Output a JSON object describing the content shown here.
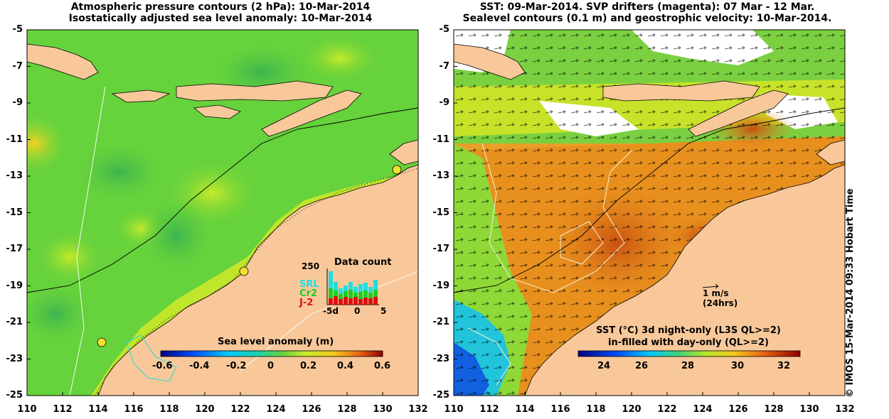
{
  "left_panel": {
    "title_line1": "Atmospheric pressure contours (2 hPa): 10-Mar-2014",
    "title_line2": "Isostatically adjusted sea level anomaly: 10-Mar-2014",
    "colorbar_title": "Sea level anomaly (m)",
    "colorbar_ticks": [
      "-0.6",
      "-0.4",
      "-0.2",
      "0",
      "0.2",
      "0.4",
      "0.6"
    ],
    "inset": {
      "title": "Data count",
      "ytick": "250",
      "legend": [
        {
          "label": "SRL",
          "color": "#22dddd"
        },
        {
          "label": "Cr2",
          "color": "#22cc22"
        },
        {
          "label": "J-2",
          "color": "#dd1111"
        }
      ],
      "xticks": [
        "-5d",
        "0",
        "5"
      ]
    }
  },
  "right_panel": {
    "title_line1": "SST: 09-Mar-2014. SVP drifters (magenta): 07 Mar - 12 Mar.",
    "title_line2": "Sealevel contours (0.1 m) and geostrophic velocity: 10-Mar-2014.",
    "scale_label": "1 m/s",
    "scale_sublabel": "(24hrs)",
    "colorbar_title_line1": "SST (°C)  3d night-only (L3S QL>=2)",
    "colorbar_title_line2": "in-filled with day-only (QL>=2)",
    "colorbar_ticks": [
      "24",
      "26",
      "28",
      "30",
      "32"
    ]
  },
  "axes": {
    "y_ticks": [
      "-5",
      "-7",
      "-9",
      "-11",
      "-13",
      "-15",
      "-17",
      "-19",
      "-21",
      "-23",
      "-25"
    ],
    "x_ticks": [
      "110",
      "112",
      "114",
      "116",
      "118",
      "120",
      "122",
      "124",
      "126",
      "128",
      "130",
      "132"
    ]
  },
  "copyright": "© IMOS 15-Mar-2014 09:33 Hobart Time",
  "colors": {
    "land": "#f8c89a",
    "ocean_green": "#66d23c",
    "ocean_yellowgreen": "#b8e62a",
    "sst_orange": "#e8901e",
    "sst_green": "#7ad040",
    "cloud_white": "#ffffff"
  }
}
